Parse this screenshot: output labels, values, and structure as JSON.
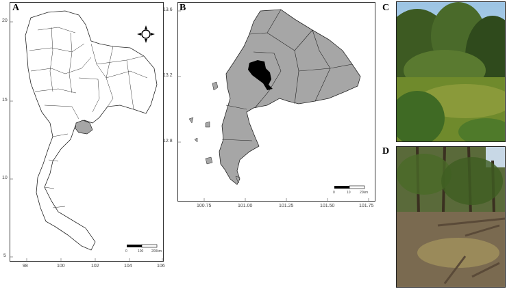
{
  "panels": {
    "a": {
      "label": "A",
      "y_ticks": [
        "20",
        "15",
        "10",
        "5"
      ],
      "x_ticks": [
        "98",
        "100",
        "102",
        "104",
        "106"
      ],
      "scalebar": [
        "0",
        "100",
        "200km"
      ]
    },
    "b": {
      "label": "B",
      "y_ticks": [
        "13.6",
        "13.2",
        "12.8"
      ],
      "x_ticks": [
        "100.75",
        "101.00",
        "101.25",
        "101.50",
        "101.75"
      ],
      "scalebar": [
        "0",
        "10",
        "20km"
      ]
    },
    "c": {
      "label": "C"
    },
    "d": {
      "label": "D"
    }
  },
  "colors": {
    "region_fill": "#a6a6a6",
    "study_area": "#000000",
    "water_c": "#8a9a3a",
    "water_d": "#9a8a5a"
  }
}
